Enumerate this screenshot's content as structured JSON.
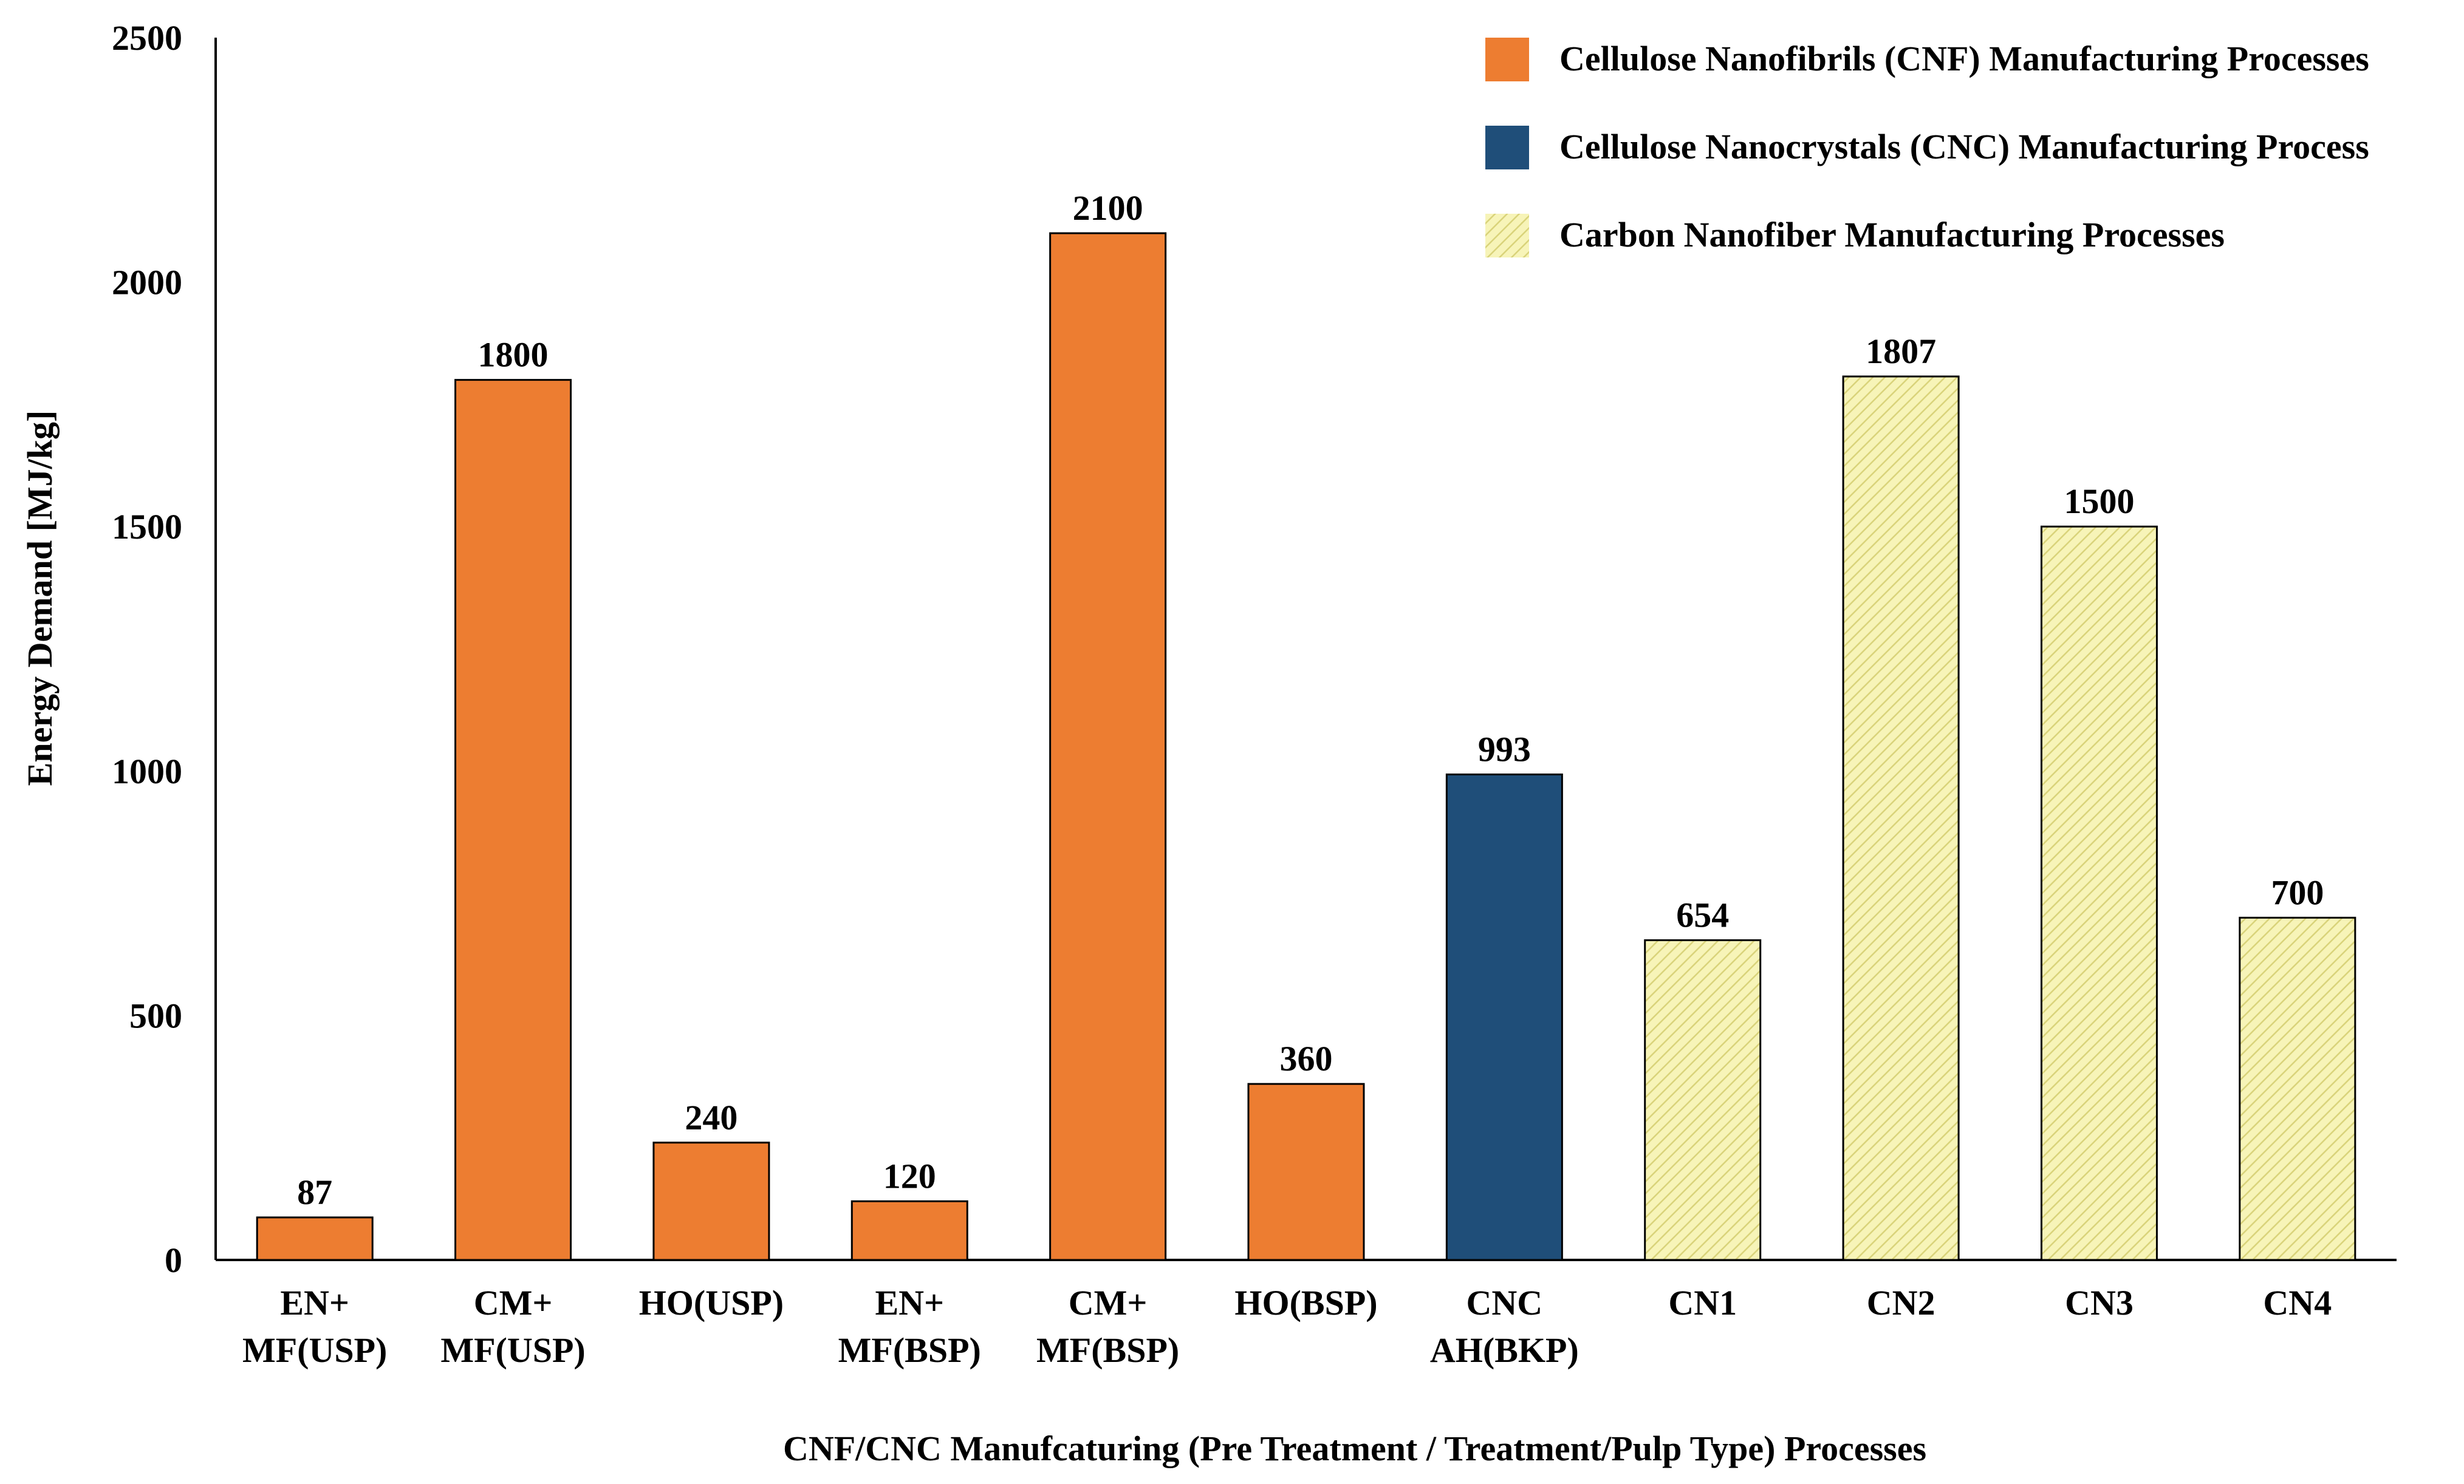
{
  "chart_data": {
    "type": "bar",
    "title": "",
    "xlabel": "CNF/CNC Manufcaturing (Pre Treatment / Treatment/Pulp Type) Processes",
    "ylabel": "Energy Demand [MJ/kg]",
    "ylim": [
      0,
      2500
    ],
    "yticks": [
      0,
      500,
      1000,
      1500,
      2000,
      2500
    ],
    "grid": false,
    "legend_position": "top-right",
    "series": [
      {
        "name": "Cellulose Nanofibrils (CNF) Manufacturing Processes",
        "color": "#ED7D31",
        "pattern": "solid"
      },
      {
        "name": "Cellulose Nanocrystals (CNC) Manufacturing Process",
        "color": "#1F4E79",
        "pattern": "solid"
      },
      {
        "name": "Carbon Nanofiber Manufacturing Processes",
        "color": "#F6F3B0",
        "pattern": "hatched"
      }
    ],
    "bars": [
      {
        "category": [
          "EN+",
          "MF(USP)"
        ],
        "value": 87,
        "series": 0
      },
      {
        "category": [
          "CM+",
          "MF(USP)"
        ],
        "value": 1800,
        "series": 0
      },
      {
        "category": [
          "HO(USP)"
        ],
        "value": 240,
        "series": 0
      },
      {
        "category": [
          "EN+",
          "MF(BSP)"
        ],
        "value": 120,
        "series": 0
      },
      {
        "category": [
          "CM+",
          "MF(BSP)"
        ],
        "value": 2100,
        "series": 0
      },
      {
        "category": [
          "HO(BSP)"
        ],
        "value": 360,
        "series": 0
      },
      {
        "category": [
          "CNC",
          "AH(BKP)"
        ],
        "value": 993,
        "series": 1
      },
      {
        "category": [
          "CN1"
        ],
        "value": 654,
        "series": 2
      },
      {
        "category": [
          "CN2"
        ],
        "value": 1807,
        "series": 2
      },
      {
        "category": [
          "CN3"
        ],
        "value": 1500,
        "series": 2
      },
      {
        "category": [
          "CN4"
        ],
        "value": 700,
        "series": 2
      }
    ]
  }
}
